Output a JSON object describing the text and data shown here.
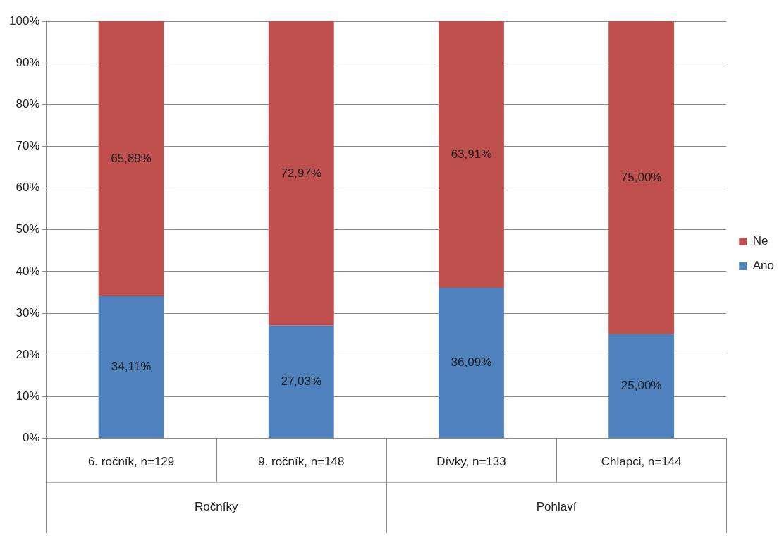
{
  "chart_data": {
    "type": "bar",
    "stacked": true,
    "categories": [
      "6. ročník, n=129",
      "9. ročník, n=148",
      "Dívky, n=133",
      "Chlapci, n=144"
    ],
    "series": [
      {
        "name": "Ano",
        "color": "#4f81bd",
        "values": [
          34.11,
          27.03,
          36.09,
          25.0
        ],
        "value_labels": [
          "34,11%",
          "27,03%",
          "36,09%",
          "25,00%"
        ]
      },
      {
        "name": "Ne",
        "color": "#c0504d",
        "values": [
          65.89,
          72.97,
          63.91,
          75.0
        ],
        "value_labels": [
          "65,89%",
          "72,97%",
          "63,91%",
          "75,00%"
        ]
      }
    ],
    "ylim": [
      0,
      100
    ],
    "yticks": [
      {
        "value": 0,
        "label": "0%"
      },
      {
        "value": 10,
        "label": "10%"
      },
      {
        "value": 20,
        "label": "20%"
      },
      {
        "value": 30,
        "label": "30%"
      },
      {
        "value": 40,
        "label": "40%"
      },
      {
        "value": 50,
        "label": "50%"
      },
      {
        "value": 60,
        "label": "60%"
      },
      {
        "value": 70,
        "label": "70%"
      },
      {
        "value": 80,
        "label": "80%"
      },
      {
        "value": 90,
        "label": "90%"
      },
      {
        "value": 100,
        "label": "100%"
      }
    ],
    "grid": "y",
    "legend": "right",
    "annotations": [
      "Ročníky",
      "Pohlaví"
    ]
  }
}
